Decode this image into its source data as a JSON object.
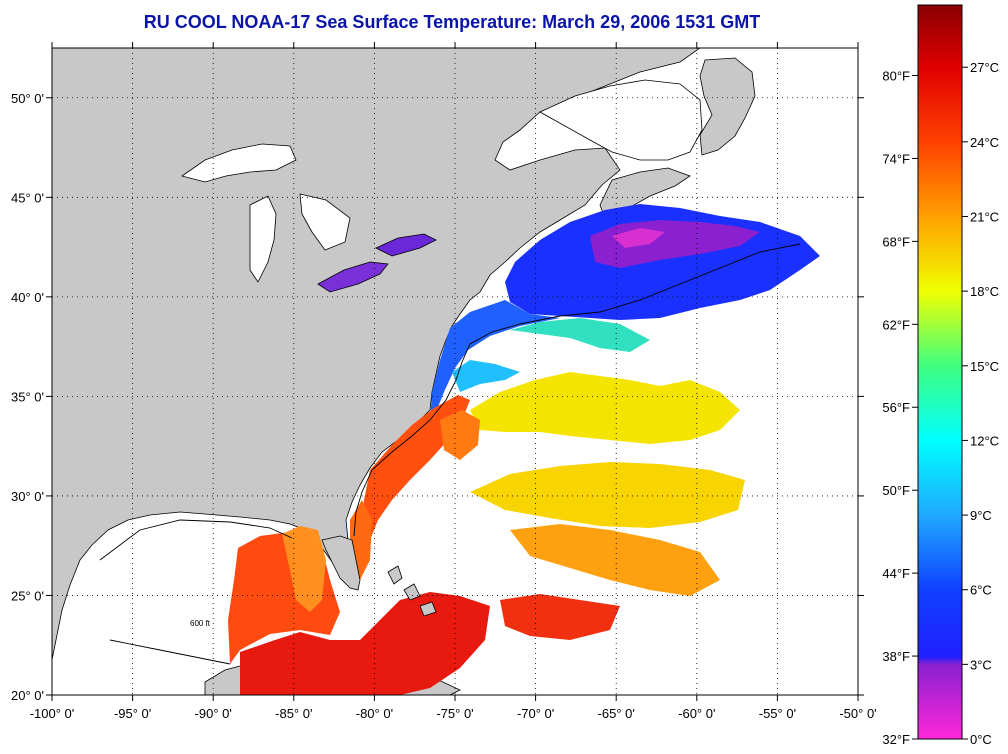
{
  "title": "RU COOL  NOAA-17  Sea Surface Temperature:  March 29, 2006 1531 GMT",
  "map": {
    "lon_labels": [
      "-100° 0'",
      "-95° 0'",
      "-90° 0'",
      "-85° 0'",
      "-80° 0'",
      "-75° 0'",
      "-70° 0'",
      "-65° 0'",
      "-60° 0'",
      "-55° 0'",
      "-50° 0'"
    ],
    "lon_values": [
      -100,
      -95,
      -90,
      -85,
      -80,
      -75,
      -70,
      -65,
      -60,
      -55,
      -50
    ],
    "lat_labels": [
      "20° 0'",
      "25° 0'",
      "30° 0'",
      "35° 0'",
      "40° 0'",
      "45° 0'",
      "50° 0'"
    ],
    "lat_values": [
      20,
      25,
      30,
      35,
      40,
      45,
      50
    ],
    "lon_range": [
      -100,
      -50
    ],
    "lat_range": [
      20,
      52.5
    ],
    "grid": "dotted",
    "colors": {
      "land": "#c8c8c8",
      "cloud": "#ffffff",
      "coastline": "#000000"
    },
    "depth_contour_label": "600 ft"
  },
  "colorbar": {
    "fahrenheit_labels": [
      "80°F",
      "74°F",
      "68°F",
      "62°F",
      "56°F",
      "50°F",
      "44°F",
      "38°F",
      "32°F"
    ],
    "fahrenheit_values": [
      80,
      74,
      68,
      62,
      56,
      50,
      44,
      38,
      32
    ],
    "celsius_labels": [
      "27°C",
      "24°C",
      "21°C",
      "18°C",
      "15°C",
      "12°C",
      "9°C",
      "6°C",
      "3°C",
      "0°C"
    ],
    "celsius_values": [
      27,
      24,
      21,
      18,
      15,
      12,
      9,
      6,
      3,
      0
    ],
    "range_c": [
      0,
      29.5
    ],
    "stops": [
      {
        "c": 0,
        "color": "#ff28d8"
      },
      {
        "c": 3,
        "color": "#8a20d0"
      },
      {
        "c": 3.3,
        "color": "#2020ff"
      },
      {
        "c": 6,
        "color": "#1040ff"
      },
      {
        "c": 9,
        "color": "#20a8ff"
      },
      {
        "c": 12,
        "color": "#00ffff"
      },
      {
        "c": 15,
        "color": "#40ff80"
      },
      {
        "c": 18,
        "color": "#f0ff00"
      },
      {
        "c": 21,
        "color": "#ffa000"
      },
      {
        "c": 24,
        "color": "#ff4000"
      },
      {
        "c": 27,
        "color": "#e00000"
      },
      {
        "c": 29.5,
        "color": "#8a0000"
      }
    ]
  }
}
